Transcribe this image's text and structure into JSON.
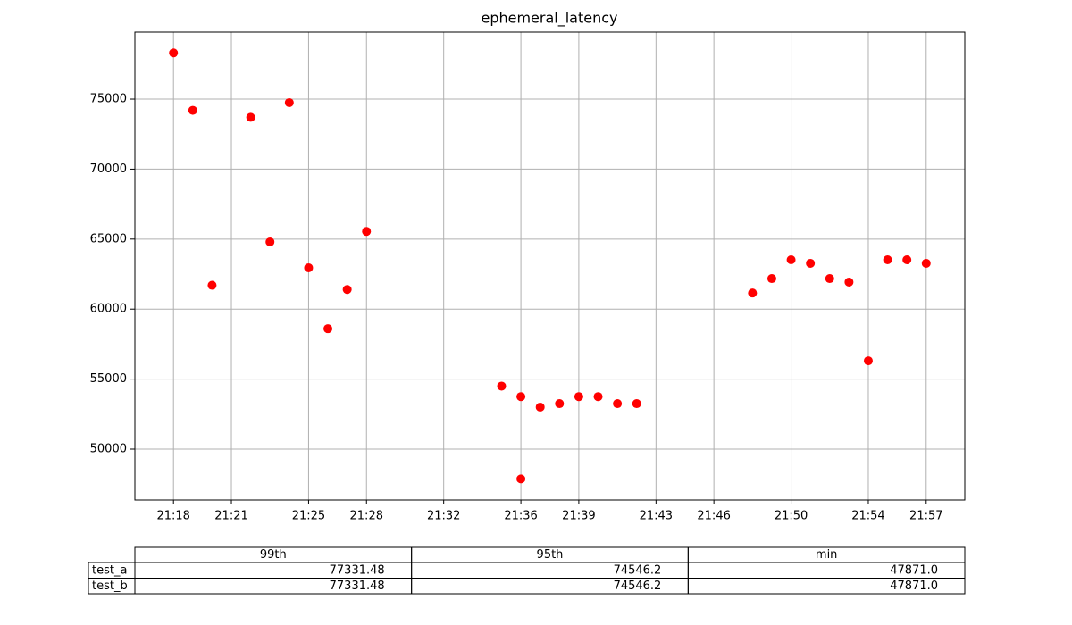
{
  "chart_data": {
    "type": "scatter",
    "title": "ephemeral_latency",
    "x": [
      "21:18",
      "21:19",
      "21:20",
      "21:22",
      "21:23",
      "21:24",
      "21:25",
      "21:26",
      "21:27",
      "21:28",
      "21:35",
      "21:36",
      "21:36",
      "21:37",
      "21:38",
      "21:39",
      "21:40",
      "21:41",
      "21:42",
      "21:48",
      "21:49",
      "21:50",
      "21:51",
      "21:52",
      "21:53",
      "21:54",
      "21:55",
      "21:56",
      "21:57"
    ],
    "values": [
      78300,
      74200,
      61700,
      73700,
      64800,
      74750,
      62950,
      58600,
      61400,
      65550,
      54500,
      53750,
      47871,
      53000,
      53250,
      53750,
      53750,
      53250,
      53250,
      61150,
      62180,
      63520,
      63270,
      62180,
      61930,
      56310,
      63520,
      63520,
      63270
    ],
    "color": "#ff0000",
    "xlim": [
      "21:16",
      "21:59"
    ],
    "xticks": [
      "21:18",
      "21:21",
      "21:25",
      "21:28",
      "21:32",
      "21:36",
      "21:39",
      "21:43",
      "21:46",
      "21:50",
      "21:54",
      "21:57"
    ],
    "ylim": [
      46365,
      79785
    ],
    "yticks": [
      50000,
      55000,
      60000,
      65000,
      70000,
      75000
    ],
    "grid": true
  },
  "table": {
    "columns": [
      "99th",
      "95th",
      "min"
    ],
    "rows": [
      {
        "label": "test_a",
        "cells": [
          "77331.48",
          "74546.2",
          "47871.0"
        ]
      },
      {
        "label": "test_b",
        "cells": [
          "77331.48",
          "74546.2",
          "47871.0"
        ]
      }
    ]
  }
}
